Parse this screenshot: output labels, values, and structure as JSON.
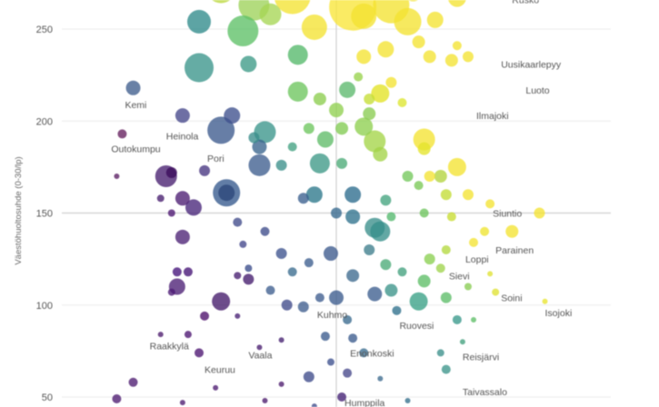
{
  "chart_data": {
    "type": "scatter",
    "title": "",
    "xlabel": "",
    "ylabel": "Väestöhuoltosuhde (0-30/lp)",
    "ylim": [
      45,
      275
    ],
    "xlim": [
      0,
      100
    ],
    "yticks": [
      50,
      100,
      150,
      200,
      250
    ],
    "ref_lines": {
      "x": 50,
      "y": 150
    },
    "grid": true,
    "color_scale": "viridis (purple → yellow)",
    "labels": [
      {
        "text": "Rusko",
        "x": 82,
        "y": 264
      },
      {
        "text": "Uusikaarlepyy",
        "x": 80,
        "y": 229
      },
      {
        "text": "Luoto",
        "x": 84.5,
        "y": 215
      },
      {
        "text": "Kemi",
        "x": 11.5,
        "y": 207
      },
      {
        "text": "Ilmajoki",
        "x": 75.5,
        "y": 201
      },
      {
        "text": "Heinola",
        "x": 19,
        "y": 190
      },
      {
        "text": "Outokumpu",
        "x": 9,
        "y": 183
      },
      {
        "text": "Pori",
        "x": 26.5,
        "y": 178
      },
      {
        "text": "Siuntio",
        "x": 78.5,
        "y": 148
      },
      {
        "text": "Parainen",
        "x": 79,
        "y": 128
      },
      {
        "text": "Loppi",
        "x": 73.5,
        "y": 123
      },
      {
        "text": "Sievi",
        "x": 70.5,
        "y": 114
      },
      {
        "text": "Soini",
        "x": 80,
        "y": 102
      },
      {
        "text": "Isojoki",
        "x": 88,
        "y": 94
      },
      {
        "text": "Kuhmo",
        "x": 46.5,
        "y": 93
      },
      {
        "text": "Ruovesi",
        "x": 61.5,
        "y": 87
      },
      {
        "text": "Raakkylä",
        "x": 16,
        "y": 76
      },
      {
        "text": "Vaala",
        "x": 34,
        "y": 71
      },
      {
        "text": "Enonkoski",
        "x": 52.5,
        "y": 72
      },
      {
        "text": "Reisjärvi",
        "x": 73,
        "y": 70
      },
      {
        "text": "Keuruu",
        "x": 26,
        "y": 63
      },
      {
        "text": "Taivassalo",
        "x": 73,
        "y": 51
      },
      {
        "text": "Humppila",
        "x": 51.5,
        "y": 45
      }
    ],
    "points": [
      {
        "x": 29,
        "y": 272,
        "r": 16,
        "c": "#bcd83d"
      },
      {
        "x": 35,
        "y": 263,
        "r": 17,
        "c": "#9ed25a"
      },
      {
        "x": 38,
        "y": 258,
        "r": 12,
        "c": "#a6d654"
      },
      {
        "x": 42,
        "y": 268,
        "r": 20,
        "c": "#f4e332"
      },
      {
        "x": 46,
        "y": 251,
        "r": 14,
        "c": "#f4e332"
      },
      {
        "x": 53,
        "y": 262,
        "r": 26,
        "c": "#f9e639"
      },
      {
        "x": 55,
        "y": 257,
        "r": 14,
        "c": "#f4e332"
      },
      {
        "x": 60,
        "y": 263,
        "r": 20,
        "c": "#f4e332"
      },
      {
        "x": 63,
        "y": 254,
        "r": 15,
        "c": "#f4e332"
      },
      {
        "x": 64,
        "y": 270,
        "r": 10,
        "c": "#f4e332"
      },
      {
        "x": 68,
        "y": 255,
        "r": 9,
        "c": "#f4e332"
      },
      {
        "x": 72,
        "y": 267,
        "r": 10,
        "c": "#f4e332"
      },
      {
        "x": 59,
        "y": 239,
        "r": 9,
        "c": "#f4e332"
      },
      {
        "x": 55,
        "y": 235,
        "r": 8,
        "c": "#f4e332"
      },
      {
        "x": 65,
        "y": 243,
        "r": 7,
        "c": "#f4e332"
      },
      {
        "x": 67,
        "y": 235,
        "r": 7,
        "c": "#f4e332"
      },
      {
        "x": 72,
        "y": 241,
        "r": 5,
        "c": "#f4e332"
      },
      {
        "x": 74,
        "y": 235,
        "r": 6,
        "c": "#f4e332"
      },
      {
        "x": 71,
        "y": 233,
        "r": 7,
        "c": "#f4e332"
      },
      {
        "x": 25,
        "y": 254,
        "r": 13,
        "c": "#2f8b8a"
      },
      {
        "x": 25,
        "y": 229,
        "r": 16,
        "c": "#3a958a"
      },
      {
        "x": 33,
        "y": 249,
        "r": 17,
        "c": "#5dc066"
      },
      {
        "x": 34,
        "y": 231,
        "r": 9,
        "c": "#3c9a87"
      },
      {
        "x": 43,
        "y": 236,
        "r": 11,
        "c": "#55b96a"
      },
      {
        "x": 43,
        "y": 216,
        "r": 11,
        "c": "#6dc55d"
      },
      {
        "x": 47,
        "y": 212,
        "r": 7,
        "c": "#8ccd4e"
      },
      {
        "x": 50,
        "y": 206,
        "r": 8,
        "c": "#8fd04f"
      },
      {
        "x": 52,
        "y": 217,
        "r": 9,
        "c": "#5cb86d"
      },
      {
        "x": 54,
        "y": 224,
        "r": 5,
        "c": "#97d24b"
      },
      {
        "x": 56,
        "y": 212,
        "r": 6,
        "c": "#c5de35"
      },
      {
        "x": 58,
        "y": 215,
        "r": 10,
        "c": "#e3e324"
      },
      {
        "x": 60,
        "y": 221,
        "r": 6,
        "c": "#f4e332"
      },
      {
        "x": 62,
        "y": 210,
        "r": 5,
        "c": "#dde52f"
      },
      {
        "x": 56,
        "y": 204,
        "r": 7,
        "c": "#89cc51"
      },
      {
        "x": 51,
        "y": 196,
        "r": 7,
        "c": "#82cb52"
      },
      {
        "x": 55,
        "y": 197,
        "r": 10,
        "c": "#8ed04f"
      },
      {
        "x": 57,
        "y": 189,
        "r": 12,
        "c": "#a4d548"
      },
      {
        "x": 58,
        "y": 182,
        "r": 8,
        "c": "#a3d448"
      },
      {
        "x": 48,
        "y": 190,
        "r": 9,
        "c": "#5fbb68"
      },
      {
        "x": 47,
        "y": 177,
        "r": 11,
        "c": "#3d9987"
      },
      {
        "x": 51,
        "y": 177,
        "r": 6,
        "c": "#4bab77"
      },
      {
        "x": 45,
        "y": 196,
        "r": 6,
        "c": "#6dc55d"
      },
      {
        "x": 37,
        "y": 194,
        "r": 12,
        "c": "#3a958a"
      },
      {
        "x": 35,
        "y": 191,
        "r": 6,
        "c": "#3a8d8b"
      },
      {
        "x": 40,
        "y": 176,
        "r": 6,
        "c": "#3b908b"
      },
      {
        "x": 42,
        "y": 186,
        "r": 5,
        "c": "#42a181"
      },
      {
        "x": 36,
        "y": 186,
        "r": 8,
        "c": "#38648d"
      },
      {
        "x": 36,
        "y": 176,
        "r": 12,
        "c": "#3e5e8e"
      },
      {
        "x": 31,
        "y": 203,
        "r": 9,
        "c": "#3e4f8d"
      },
      {
        "x": 29,
        "y": 195,
        "r": 15,
        "c": "#3c5a8d"
      },
      {
        "x": 13,
        "y": 218,
        "r": 8,
        "c": "#3f5d8d"
      },
      {
        "x": 22,
        "y": 203,
        "r": 8,
        "c": "#45468b"
      },
      {
        "x": 26,
        "y": 173,
        "r": 6,
        "c": "#463580"
      },
      {
        "x": 30,
        "y": 161,
        "r": 15,
        "c": "#35588d"
      },
      {
        "x": 30,
        "y": 161,
        "r": 9,
        "c": "#2b467a"
      },
      {
        "x": 19,
        "y": 170,
        "r": 12,
        "c": "#481f70"
      },
      {
        "x": 20,
        "y": 172,
        "r": 6,
        "c": "#3b0c5b"
      },
      {
        "x": 11,
        "y": 193,
        "r": 5,
        "c": "#641f5d"
      },
      {
        "x": 10,
        "y": 170,
        "r": 3,
        "c": "#5a1e63"
      },
      {
        "x": 22,
        "y": 158,
        "r": 8,
        "c": "#4b1c72"
      },
      {
        "x": 24,
        "y": 153,
        "r": 9,
        "c": "#48257a"
      },
      {
        "x": 18,
        "y": 158,
        "r": 4,
        "c": "#471c6e"
      },
      {
        "x": 20,
        "y": 150,
        "r": 4,
        "c": "#4b1571"
      },
      {
        "x": 22,
        "y": 137,
        "r": 8,
        "c": "#4b2175"
      },
      {
        "x": 21,
        "y": 118,
        "r": 5,
        "c": "#44127a"
      },
      {
        "x": 21,
        "y": 110,
        "r": 9,
        "c": "#4b1f75"
      },
      {
        "x": 20,
        "y": 107,
        "r": 4,
        "c": "#4c1a74"
      },
      {
        "x": 23,
        "y": 118,
        "r": 5,
        "c": "#441275"
      },
      {
        "x": 29,
        "y": 102,
        "r": 10,
        "c": "#441a6a"
      },
      {
        "x": 34,
        "y": 114,
        "r": 6,
        "c": "#441b6d"
      },
      {
        "x": 32,
        "y": 116,
        "r": 4,
        "c": "#471d70"
      },
      {
        "x": 44,
        "y": 158,
        "r": 6,
        "c": "#3a5f8e"
      },
      {
        "x": 46,
        "y": 160,
        "r": 9,
        "c": "#2c778b"
      },
      {
        "x": 50,
        "y": 150,
        "r": 6,
        "c": "#35688d"
      },
      {
        "x": 53,
        "y": 160,
        "r": 9,
        "c": "#2c6b8d"
      },
      {
        "x": 53,
        "y": 148,
        "r": 8,
        "c": "#2f728d"
      },
      {
        "x": 57,
        "y": 142,
        "r": 11,
        "c": "#3a8e8b"
      },
      {
        "x": 59,
        "y": 157,
        "r": 6,
        "c": "#44a47f"
      },
      {
        "x": 60,
        "y": 148,
        "r": 5,
        "c": "#53b86d"
      },
      {
        "x": 63,
        "y": 170,
        "r": 6,
        "c": "#73c85b"
      },
      {
        "x": 65,
        "y": 165,
        "r": 5,
        "c": "#7ac856"
      },
      {
        "x": 66,
        "y": 150,
        "r": 5,
        "c": "#6dc45c"
      },
      {
        "x": 69,
        "y": 170,
        "r": 7,
        "c": "#b2d43d"
      },
      {
        "x": 70,
        "y": 160,
        "r": 6,
        "c": "#c3dd34"
      },
      {
        "x": 71,
        "y": 148,
        "r": 5,
        "c": "#c8dc31"
      },
      {
        "x": 66,
        "y": 190,
        "r": 12,
        "c": "#f4e332"
      },
      {
        "x": 66,
        "y": 185,
        "r": 7,
        "c": "#e4e42b"
      },
      {
        "x": 72,
        "y": 175,
        "r": 10,
        "c": "#f4e332"
      },
      {
        "x": 67,
        "y": 170,
        "r": 6,
        "c": "#f4e332"
      },
      {
        "x": 74,
        "y": 160,
        "r": 6,
        "c": "#f4e332"
      },
      {
        "x": 78,
        "y": 155,
        "r": 5,
        "c": "#f4e332"
      },
      {
        "x": 82,
        "y": 140,
        "r": 7,
        "c": "#f4e332"
      },
      {
        "x": 87,
        "y": 150,
        "r": 6,
        "c": "#f4e332"
      },
      {
        "x": 75,
        "y": 134,
        "r": 5,
        "c": "#f4e332"
      },
      {
        "x": 77,
        "y": 140,
        "r": 5,
        "c": "#eee42f"
      },
      {
        "x": 70,
        "y": 130,
        "r": 5,
        "c": "#b4d83f"
      },
      {
        "x": 69,
        "y": 120,
        "r": 5,
        "c": "#9fd44c"
      },
      {
        "x": 67,
        "y": 125,
        "r": 6,
        "c": "#8ad051"
      },
      {
        "x": 66,
        "y": 113,
        "r": 7,
        "c": "#5dbe67"
      },
      {
        "x": 65,
        "y": 102,
        "r": 10,
        "c": "#39a085"
      },
      {
        "x": 70,
        "y": 104,
        "r": 6,
        "c": "#5cbd68"
      },
      {
        "x": 72,
        "y": 92,
        "r": 5,
        "c": "#39988a"
      },
      {
        "x": 74,
        "y": 110,
        "r": 4,
        "c": "#88cc52"
      },
      {
        "x": 78,
        "y": 117,
        "r": 3,
        "c": "#dfe232"
      },
      {
        "x": 79,
        "y": 107,
        "r": 4,
        "c": "#dfe232"
      },
      {
        "x": 88,
        "y": 102,
        "r": 3,
        "c": "#e8e430"
      },
      {
        "x": 58,
        "y": 140,
        "r": 11,
        "c": "#368f8b"
      },
      {
        "x": 56,
        "y": 130,
        "r": 6,
        "c": "#3e7d8c"
      },
      {
        "x": 59,
        "y": 122,
        "r": 6,
        "c": "#4aab77"
      },
      {
        "x": 62,
        "y": 118,
        "r": 5,
        "c": "#43a07e"
      },
      {
        "x": 60,
        "y": 108,
        "r": 7,
        "c": "#3b9389"
      },
      {
        "x": 57,
        "y": 106,
        "r": 8,
        "c": "#3c5d8e"
      },
      {
        "x": 61,
        "y": 97,
        "r": 5,
        "c": "#2e6f8c"
      },
      {
        "x": 53,
        "y": 116,
        "r": 7,
        "c": "#3d6a8e"
      },
      {
        "x": 49,
        "y": 128,
        "r": 8,
        "c": "#3c5a8d"
      },
      {
        "x": 45,
        "y": 123,
        "r": 5,
        "c": "#3c5e8e"
      },
      {
        "x": 42,
        "y": 118,
        "r": 5,
        "c": "#3a6b8e"
      },
      {
        "x": 40,
        "y": 128,
        "r": 6,
        "c": "#3e538e"
      },
      {
        "x": 37,
        "y": 140,
        "r": 5,
        "c": "#3e4b8b"
      },
      {
        "x": 34,
        "y": 120,
        "r": 4,
        "c": "#3a4c8b"
      },
      {
        "x": 33,
        "y": 133,
        "r": 4,
        "c": "#42478a"
      },
      {
        "x": 32,
        "y": 145,
        "r": 5,
        "c": "#404a8b"
      },
      {
        "x": 38,
        "y": 108,
        "r": 5,
        "c": "#3d5e8e"
      },
      {
        "x": 41,
        "y": 100,
        "r": 6,
        "c": "#404a8b"
      },
      {
        "x": 44,
        "y": 99,
        "r": 6,
        "c": "#3f5d8e"
      },
      {
        "x": 47,
        "y": 104,
        "r": 5,
        "c": "#3d5c8e"
      },
      {
        "x": 50,
        "y": 104,
        "r": 8,
        "c": "#3b5b8d"
      },
      {
        "x": 52,
        "y": 92,
        "r": 5,
        "c": "#3a6a8e"
      },
      {
        "x": 48,
        "y": 83,
        "r": 5,
        "c": "#3b5b8d"
      },
      {
        "x": 53,
        "y": 82,
        "r": 5,
        "c": "#3b5b8d"
      },
      {
        "x": 55,
        "y": 74,
        "r": 5,
        "c": "#3a6b8e"
      },
      {
        "x": 49,
        "y": 69,
        "r": 4,
        "c": "#3c4f8d"
      },
      {
        "x": 45,
        "y": 61,
        "r": 6,
        "c": "#3f4c8b"
      },
      {
        "x": 52,
        "y": 63,
        "r": 5,
        "c": "#46488a"
      },
      {
        "x": 51,
        "y": 50,
        "r": 5,
        "c": "#422073"
      },
      {
        "x": 40,
        "y": 57,
        "r": 3,
        "c": "#4b1b6d"
      },
      {
        "x": 40,
        "y": 81,
        "r": 3,
        "c": "#441f6f"
      },
      {
        "x": 36,
        "y": 77,
        "r": 3,
        "c": "#481c6e"
      },
      {
        "x": 32,
        "y": 94,
        "r": 3,
        "c": "#461f73"
      },
      {
        "x": 26,
        "y": 94,
        "r": 5,
        "c": "#4b0e6a"
      },
      {
        "x": 25,
        "y": 74,
        "r": 5,
        "c": "#4b1471"
      },
      {
        "x": 23,
        "y": 84,
        "r": 4,
        "c": "#4b1471"
      },
      {
        "x": 18,
        "y": 84,
        "r": 3,
        "c": "#4b1b6d"
      },
      {
        "x": 13,
        "y": 58,
        "r": 5,
        "c": "#4d1b71"
      },
      {
        "x": 10,
        "y": 49,
        "r": 5,
        "c": "#4d1b71"
      },
      {
        "x": 22,
        "y": 47,
        "r": 3,
        "c": "#4d1b71"
      },
      {
        "x": 28,
        "y": 55,
        "r": 3,
        "c": "#4d1b71"
      },
      {
        "x": 37,
        "y": 48,
        "r": 3,
        "c": "#4b1b6d"
      },
      {
        "x": 46,
        "y": 45,
        "r": 3,
        "c": "#3f4c8b"
      },
      {
        "x": 58,
        "y": 60,
        "r": 3,
        "c": "#3d6a8e"
      },
      {
        "x": 63,
        "y": 48,
        "r": 3,
        "c": "#35708c"
      },
      {
        "x": 69,
        "y": 74,
        "r": 4,
        "c": "#3b908b"
      },
      {
        "x": 70,
        "y": 65,
        "r": 5,
        "c": "#3c958a"
      },
      {
        "x": 73,
        "y": 80,
        "r": 3,
        "c": "#43a07e"
      },
      {
        "x": 75,
        "y": 92,
        "r": 3,
        "c": "#5ebe66"
      }
    ]
  }
}
